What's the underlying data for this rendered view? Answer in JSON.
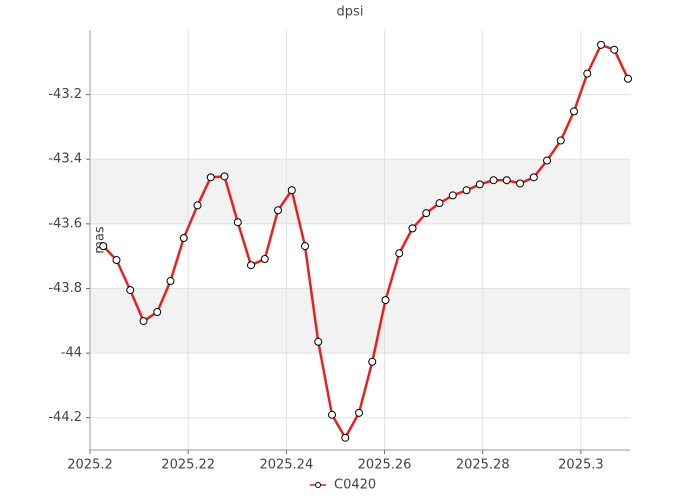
{
  "chart_data": {
    "type": "line",
    "title": "dpsi",
    "y_label": "mas",
    "x": [
      2025.2027,
      2025.2054,
      2025.2082,
      2025.2109,
      2025.2137,
      2025.2164,
      2025.2191,
      2025.2219,
      2025.2246,
      2025.2274,
      2025.2301,
      2025.2328,
      2025.2356,
      2025.2383,
      2025.2411,
      2025.2438,
      2025.2465,
      2025.2493,
      2025.252,
      2025.2548,
      2025.2575,
      2025.2602,
      2025.263,
      2025.2657,
      2025.2685,
      2025.2712,
      2025.2739,
      2025.2767,
      2025.2794,
      2025.2822,
      2025.2849,
      2025.2876,
      2025.2904,
      2025.2931,
      2025.2959,
      2025.2986,
      2025.3013,
      2025.3041,
      2025.3068,
      2025.3096
    ],
    "series": [
      {
        "name": "C0420",
        "color": "#e8211f",
        "values": [
          -43.669,
          -43.712,
          -43.805,
          -43.901,
          -43.873,
          -43.777,
          -43.644,
          -43.543,
          -43.456,
          -43.453,
          -43.595,
          -43.728,
          -43.709,
          -43.558,
          -43.496,
          -43.669,
          -43.965,
          -44.191,
          -44.262,
          -44.185,
          -44.027,
          -43.836,
          -43.691,
          -43.614,
          -43.567,
          -43.536,
          -43.512,
          -43.496,
          -43.478,
          -43.465,
          -43.465,
          -43.475,
          -43.456,
          -43.404,
          -43.342,
          -43.252,
          -43.135,
          -43.046,
          -43.061,
          -43.151
        ]
      }
    ],
    "xlim": [
      2025.2,
      2025.31
    ],
    "xticks": [
      2025.2,
      2025.22,
      2025.24,
      2025.26,
      2025.28,
      2025.3
    ],
    "ylim": [
      -44.3,
      -43.0
    ],
    "yticks": [
      -44.2,
      -44,
      -43.8,
      -43.6,
      -43.4,
      -43.2
    ],
    "grid": true,
    "legend": "bottom"
  }
}
